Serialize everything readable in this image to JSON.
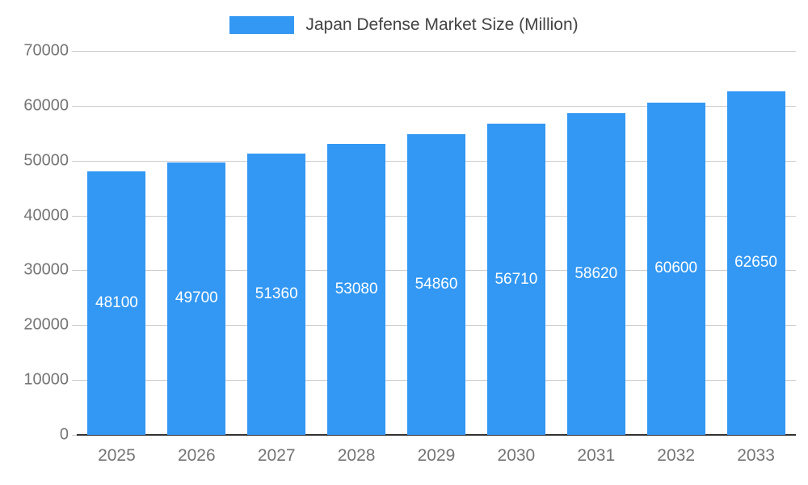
{
  "legend": {
    "title": "Japan Defense Market Size (Million)"
  },
  "chart_data": {
    "type": "bar",
    "title": "Japan Defense Market Size (Million)",
    "categories": [
      "2025",
      "2026",
      "2027",
      "2028",
      "2029",
      "2030",
      "2031",
      "2032",
      "2033"
    ],
    "values": [
      48100,
      49700,
      51360,
      53080,
      54860,
      56710,
      58620,
      60600,
      62650
    ],
    "xlabel": "",
    "ylabel": "",
    "ylim": [
      0,
      70000
    ],
    "yticks": [
      0,
      10000,
      20000,
      30000,
      40000,
      50000,
      60000,
      70000
    ],
    "grid": true,
    "legend_position": "top",
    "bar_color": "#3398f3",
    "value_label_color": "#ffffff",
    "axis_text_color": "#757575",
    "gridline_color": "#cccccc",
    "baseline_color": "#333333"
  }
}
